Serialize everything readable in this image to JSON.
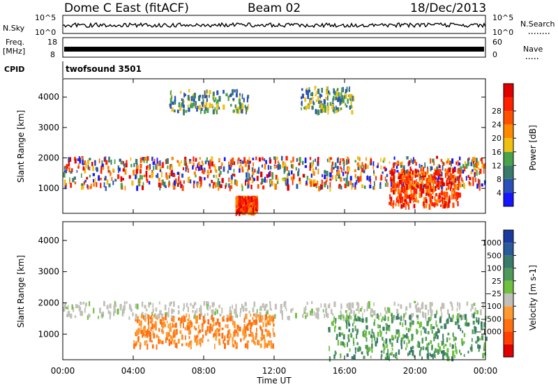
{
  "header": {
    "station": "Dome C East (fitACF)",
    "beam": "Beam 02",
    "date": "18/Dec/2013"
  },
  "aux_panels": {
    "nsky_label": "N.Sky",
    "nsky_ticks": [
      "10^5",
      "10^0"
    ],
    "nsearch_label": "N.Search",
    "nsearch_ticks": [
      "10^5",
      "10^0"
    ],
    "freq_label": "Freq.",
    "freq_unit": "[MHz]",
    "freq_ticks": [
      "18",
      "8"
    ],
    "nave_label": "Nave",
    "nave_ticks": [
      "60",
      "0"
    ],
    "cpid_label": "CPID",
    "cpid_value": "twofsound 3501"
  },
  "chart_data": [
    {
      "type": "heatmap",
      "panel": "power",
      "ylabel": "Slant Range [km]",
      "xlabel": "Time UT",
      "x_ticks": [
        "00:00",
        "04:00",
        "08:00",
        "12:00",
        "16:00",
        "20:00",
        "00:00"
      ],
      "xlim_hours": [
        0,
        24
      ],
      "y_ticks": [
        1000,
        2000,
        3000,
        4000
      ],
      "ylim": [
        180,
        4600
      ],
      "colorbar_label": "Power [dB]",
      "colorbar_ticks": [
        "4",
        "8",
        "12",
        "16",
        "20",
        "24",
        "28"
      ],
      "colorbar_colors": [
        "#1515ff",
        "#2a4fb8",
        "#3a7a6a",
        "#4aa24a",
        "#f0c010",
        "#ff8a00",
        "#ff5000",
        "#ff2000",
        "#e00000"
      ],
      "regions": [
        {
          "t0": 0.0,
          "t1": 24.0,
          "r0": 1000,
          "r1": 2000,
          "level": "mixed"
        },
        {
          "t0": 9.8,
          "t1": 11.0,
          "r0": 200,
          "r1": 700,
          "level": "high"
        },
        {
          "t0": 18.5,
          "t1": 22.5,
          "r0": 400,
          "r1": 1600,
          "level": "high"
        },
        {
          "t0": 6.0,
          "t1": 10.5,
          "r0": 3500,
          "r1": 4200,
          "level": "sparse"
        },
        {
          "t0": 13.5,
          "t1": 16.5,
          "r0": 3500,
          "r1": 4300,
          "level": "sparse"
        }
      ]
    },
    {
      "type": "heatmap",
      "panel": "velocity",
      "ylabel": "Slant Range [km]",
      "xlabel": "Time UT",
      "x_ticks": [
        "00:00",
        "04:00",
        "08:00",
        "12:00",
        "16:00",
        "20:00",
        "00:00"
      ],
      "xlim_hours": [
        0,
        24
      ],
      "y_ticks": [
        1000,
        2000,
        3000,
        4000
      ],
      "ylim": [
        180,
        4600
      ],
      "colorbar_label": "Velocity [m s-1]",
      "colorbar_ticks": [
        "1000",
        "500",
        "100",
        "25",
        "−25",
        "−100",
        "−500",
        "−1000"
      ],
      "colorbar_colors": [
        "#1a3aa0",
        "#2a5a9a",
        "#3a7a6a",
        "#4f9a5a",
        "#70c040",
        "#c0c0b8",
        "#ff9a30",
        "#ff7010",
        "#ff4000",
        "#e00000"
      ],
      "regions": [
        {
          "t0": 0.0,
          "t1": 24.0,
          "r0": 1500,
          "r1": 2000,
          "level": "ground"
        },
        {
          "t0": 4.0,
          "t1": 12.0,
          "r0": 600,
          "r1": 1600,
          "level": "negative"
        },
        {
          "t0": 15.0,
          "t1": 24.0,
          "r0": 200,
          "r1": 1600,
          "level": "positive"
        }
      ]
    }
  ]
}
